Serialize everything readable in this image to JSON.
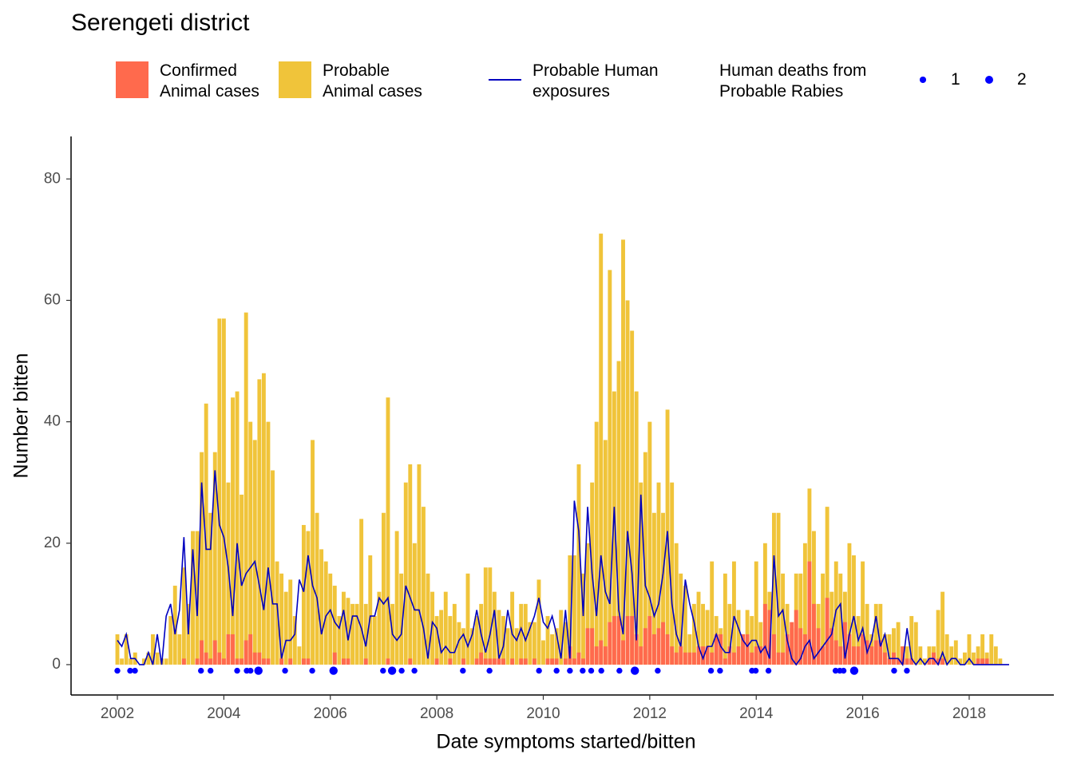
{
  "chart_data": {
    "type": "bar",
    "title": "Serengeti district",
    "x_label": "Date symptoms started/bitten",
    "y_label": "Number bitten",
    "x": [
      2002,
      2002.083,
      2002.167,
      2002.25,
      2002.333,
      2002.417,
      2002.5,
      2002.583,
      2002.667,
      2002.75,
      2002.833,
      2002.917,
      2003,
      2003.083,
      2003.167,
      2003.25,
      2003.333,
      2003.417,
      2003.5,
      2003.583,
      2003.667,
      2003.75,
      2003.833,
      2003.917,
      2004,
      2004.083,
      2004.167,
      2004.25,
      2004.333,
      2004.417,
      2004.5,
      2004.583,
      2004.667,
      2004.75,
      2004.833,
      2004.917,
      2005,
      2005.083,
      2005.167,
      2005.25,
      2005.333,
      2005.417,
      2005.5,
      2005.583,
      2005.667,
      2005.75,
      2005.833,
      2005.917,
      2006,
      2006.083,
      2006.167,
      2006.25,
      2006.333,
      2006.417,
      2006.5,
      2006.583,
      2006.667,
      2006.75,
      2006.833,
      2006.917,
      2007,
      2007.083,
      2007.167,
      2007.25,
      2007.333,
      2007.417,
      2007.5,
      2007.583,
      2007.667,
      2007.75,
      2007.833,
      2007.917,
      2008,
      2008.083,
      2008.167,
      2008.25,
      2008.333,
      2008.417,
      2008.5,
      2008.583,
      2008.667,
      2008.75,
      2008.833,
      2008.917,
      2009,
      2009.083,
      2009.167,
      2009.25,
      2009.333,
      2009.417,
      2009.5,
      2009.583,
      2009.667,
      2009.75,
      2009.833,
      2009.917,
      2010,
      2010.083,
      2010.167,
      2010.25,
      2010.333,
      2010.417,
      2010.5,
      2010.583,
      2010.667,
      2010.75,
      2010.833,
      2010.917,
      2011,
      2011.083,
      2011.167,
      2011.25,
      2011.333,
      2011.417,
      2011.5,
      2011.583,
      2011.667,
      2011.75,
      2011.833,
      2011.917,
      2012,
      2012.083,
      2012.167,
      2012.25,
      2012.333,
      2012.417,
      2012.5,
      2012.583,
      2012.667,
      2012.75,
      2012.833,
      2012.917,
      2013,
      2013.083,
      2013.167,
      2013.25,
      2013.333,
      2013.417,
      2013.5,
      2013.583,
      2013.667,
      2013.75,
      2013.833,
      2013.917,
      2014,
      2014.083,
      2014.167,
      2014.25,
      2014.333,
      2014.417,
      2014.5,
      2014.583,
      2014.667,
      2014.75,
      2014.833,
      2014.917,
      2015,
      2015.083,
      2015.167,
      2015.25,
      2015.333,
      2015.417,
      2015.5,
      2015.583,
      2015.667,
      2015.75,
      2015.833,
      2015.917,
      2016,
      2016.083,
      2016.167,
      2016.25,
      2016.333,
      2016.417,
      2016.5,
      2016.583,
      2016.667,
      2016.75,
      2016.833,
      2016.917,
      2017,
      2017.083,
      2017.167,
      2017.25,
      2017.333,
      2017.417,
      2017.5,
      2017.583,
      2017.667,
      2017.75,
      2017.833,
      2017.917,
      2018,
      2018.083,
      2018.167,
      2018.25,
      2018.333,
      2018.417,
      2018.5,
      2018.583,
      2018.667,
      2018.75
    ],
    "series": [
      {
        "name": "Confirmed\nAnimal cases",
        "color": "#ff6a4d",
        "type": "bar",
        "values": [
          0,
          0,
          0,
          0,
          0,
          0,
          0,
          0,
          0,
          0,
          0,
          0,
          0,
          0,
          0,
          1,
          0,
          0,
          1,
          4,
          2,
          1,
          4,
          2,
          1,
          5,
          5,
          1,
          1,
          4,
          5,
          2,
          2,
          1,
          1,
          0,
          0,
          1,
          0,
          1,
          0,
          0,
          1,
          1,
          0,
          0,
          0,
          0,
          0,
          2,
          0,
          1,
          1,
          0,
          0,
          0,
          1,
          0,
          0,
          0,
          0,
          1,
          0,
          0,
          0,
          0,
          1,
          0,
          0,
          0,
          0,
          0,
          1,
          0,
          0,
          1,
          0,
          0,
          1,
          0,
          0,
          1,
          2,
          1,
          1,
          1,
          1,
          1,
          0,
          1,
          0,
          1,
          1,
          0,
          1,
          0,
          0,
          1,
          1,
          1,
          0,
          1,
          3,
          1,
          2,
          1,
          6,
          6,
          3,
          4,
          3,
          7,
          8,
          8,
          4,
          8,
          8,
          5,
          3,
          6,
          8,
          5,
          6,
          7,
          5,
          3,
          2,
          3,
          2,
          2,
          2,
          3,
          3,
          3,
          2,
          5,
          5,
          1,
          3,
          2,
          3,
          5,
          5,
          2,
          3,
          3,
          10,
          9,
          5,
          2,
          2,
          5,
          7,
          9,
          6,
          5,
          17,
          10,
          6,
          3,
          11,
          6,
          4,
          3,
          7,
          5,
          3,
          3,
          5,
          4,
          3,
          4,
          4,
          2,
          1,
          2,
          1,
          3,
          1,
          1,
          0,
          0,
          0,
          1,
          2,
          1,
          1,
          0,
          0,
          0,
          0,
          0,
          0,
          0,
          1,
          1,
          1,
          0,
          0,
          0,
          0,
          0
        ]
      },
      {
        "name": "Probable\nAnimal cases",
        "color": "#f0c43a",
        "type": "bar",
        "values": [
          5,
          1,
          5,
          1,
          2,
          0,
          1,
          2,
          5,
          2,
          1,
          1,
          8,
          13,
          5,
          16,
          10,
          22,
          22,
          35,
          43,
          25,
          35,
          57,
          57,
          30,
          44,
          45,
          28,
          58,
          40,
          37,
          47,
          48,
          40,
          32,
          17,
          15,
          12,
          14,
          8,
          3,
          23,
          22,
          37,
          25,
          19,
          17,
          15,
          13,
          8,
          12,
          11,
          10,
          10,
          24,
          10,
          18,
          8,
          12,
          25,
          44,
          10,
          22,
          15,
          30,
          33,
          20,
          33,
          26,
          15,
          12,
          8,
          9,
          12,
          8,
          10,
          7,
          6,
          15,
          6,
          8,
          10,
          16,
          16,
          12,
          9,
          8,
          6,
          12,
          6,
          10,
          10,
          7,
          7,
          14,
          4,
          8,
          5,
          6,
          9,
          7,
          18,
          18,
          33,
          15,
          20,
          30,
          40,
          71,
          37,
          65,
          45,
          50,
          70,
          60,
          55,
          45,
          30,
          35,
          40,
          25,
          30,
          25,
          42,
          30,
          20,
          15,
          13,
          5,
          10,
          12,
          10,
          9,
          17,
          8,
          6,
          15,
          10,
          17,
          9,
          5,
          9,
          8,
          17,
          7,
          20,
          12,
          25,
          25,
          15,
          10,
          6,
          15,
          15,
          20,
          29,
          22,
          10,
          15,
          26,
          12,
          17,
          15,
          12,
          20,
          18,
          8,
          17,
          10,
          5,
          10,
          10,
          5,
          5,
          6,
          7,
          3,
          3,
          8,
          7,
          3,
          1,
          3,
          3,
          9,
          12,
          5,
          3,
          4,
          1,
          2,
          5,
          2,
          3,
          5,
          2,
          5,
          3,
          1,
          0,
          0
        ]
      },
      {
        "name": "Probable Human\nexposures",
        "color": "#0000c0",
        "type": "line",
        "values": [
          4,
          3,
          5,
          1,
          1,
          0,
          0,
          2,
          0,
          5,
          0,
          8,
          10,
          5,
          9,
          21,
          5,
          19,
          8,
          30,
          19,
          19,
          32,
          23,
          21,
          16,
          8,
          20,
          13,
          15,
          16,
          17,
          13,
          9,
          16,
          10,
          10,
          1,
          4,
          4,
          5,
          14,
          12,
          18,
          13,
          11,
          5,
          8,
          9,
          7,
          6,
          9,
          4,
          8,
          8,
          6,
          3,
          8,
          8,
          11,
          10,
          11,
          5,
          4,
          5,
          13,
          11,
          9,
          9,
          6,
          1,
          7,
          6,
          2,
          3,
          2,
          2,
          4,
          5,
          3,
          5,
          9,
          5,
          2,
          5,
          9,
          1,
          3,
          9,
          5,
          4,
          6,
          4,
          6,
          8,
          11,
          7,
          6,
          8,
          5,
          1,
          9,
          1,
          27,
          22,
          8,
          26,
          15,
          8,
          18,
          12,
          10,
          26,
          9,
          5,
          22,
          15,
          4,
          28,
          13,
          11,
          8,
          10,
          15,
          22,
          10,
          5,
          3,
          14,
          10,
          7,
          3,
          1,
          3,
          3,
          5,
          3,
          2,
          2,
          8,
          6,
          4,
          3,
          4,
          4,
          2,
          3,
          1,
          18,
          8,
          9,
          4,
          1,
          0,
          1,
          3,
          4,
          1,
          2,
          3,
          4,
          5,
          9,
          10,
          1,
          5,
          8,
          4,
          6,
          2,
          4,
          8,
          3,
          5,
          1,
          1,
          1,
          0,
          6,
          1,
          0,
          1,
          0,
          1,
          1,
          0,
          2,
          0,
          1,
          1,
          0,
          0,
          1,
          0,
          0,
          0,
          0,
          0,
          0,
          0,
          0,
          0
        ]
      }
    ],
    "deaths": {
      "name": "Human deaths from\nProbable Rabies",
      "color": "#0000ff",
      "y": -1,
      "size_legend": [
        1,
        2
      ],
      "x": [
        2002,
        2002.24,
        2002.33,
        2003.57,
        2003.75,
        2004.25,
        2004.43,
        2004.5,
        2004.65,
        2005.15,
        2005.66,
        2006.06,
        2006.99,
        2007.16,
        2007.34,
        2007.58,
        2008.49,
        2008.99,
        2009.92,
        2010.25,
        2010.5,
        2010.74,
        2010.9,
        2011.09,
        2011.43,
        2011.72,
        2012.15,
        2013.15,
        2013.32,
        2013.92,
        2013.99,
        2014.23,
        2015.49,
        2015.57,
        2015.64,
        2015.84,
        2016.59,
        2016.83
      ],
      "sizes": [
        1,
        1,
        1,
        1,
        1,
        1,
        1,
        1,
        2,
        1,
        1,
        2,
        1,
        2,
        1,
        1,
        1,
        1,
        1,
        1,
        1,
        1,
        1,
        1,
        1,
        2,
        1,
        1,
        1,
        1,
        1,
        1,
        1,
        1,
        1,
        2,
        1,
        1
      ]
    },
    "xlim": [
      2001.13,
      2019.59
    ],
    "ylim": [
      -5,
      87
    ],
    "xticks": [
      2002,
      2004,
      2006,
      2008,
      2010,
      2012,
      2014,
      2016,
      2018
    ],
    "yticks": [
      0,
      20,
      40,
      60,
      80
    ]
  }
}
